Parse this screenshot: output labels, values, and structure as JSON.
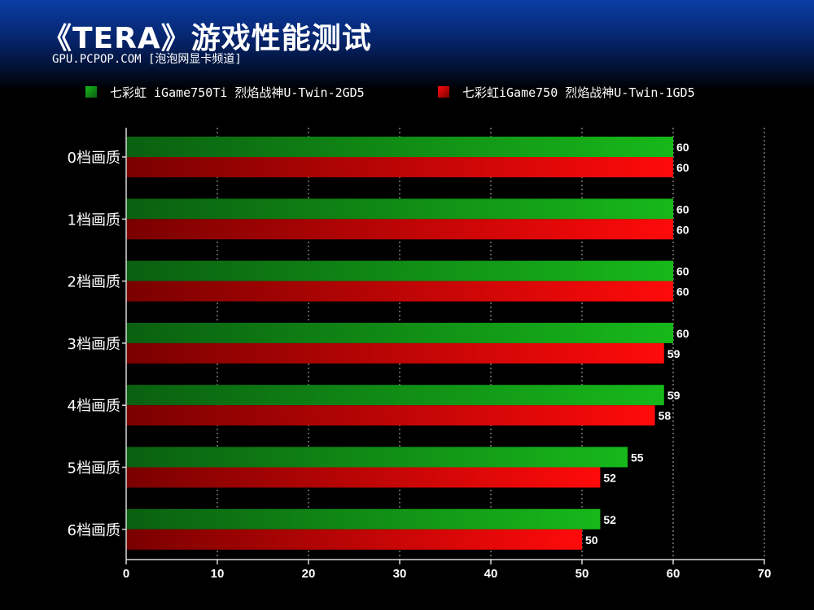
{
  "chart_data": {
    "type": "bar",
    "orientation": "horizontal",
    "title": "《TERA》游戏性能测试",
    "subtitle": "GPU.PCPOP.COM [泡泡网显卡频道]",
    "categories": [
      "0档画质",
      "1档画质",
      "2档画质",
      "3档画质",
      "4档画质",
      "5档画质",
      "6档画质"
    ],
    "series": [
      {
        "name": "七彩虹 iGame750Ti 烈焰战神U-Twin-2GD5",
        "values": [
          60,
          60,
          60,
          60,
          59,
          55,
          52
        ],
        "color": "#17b81a",
        "color_dark": "#0a6010"
      },
      {
        "name": "七彩虹iGame750 烈焰战神U-Twin-1GD5",
        "values": [
          60,
          60,
          60,
          59,
          58,
          52,
          50
        ],
        "color": "#ff0a0a",
        "color_dark": "#7a0000"
      }
    ],
    "xlim": [
      0,
      70
    ],
    "xticks": [
      0,
      10,
      20,
      30,
      40,
      50,
      60,
      70
    ],
    "grid": true,
    "legend": "top"
  }
}
